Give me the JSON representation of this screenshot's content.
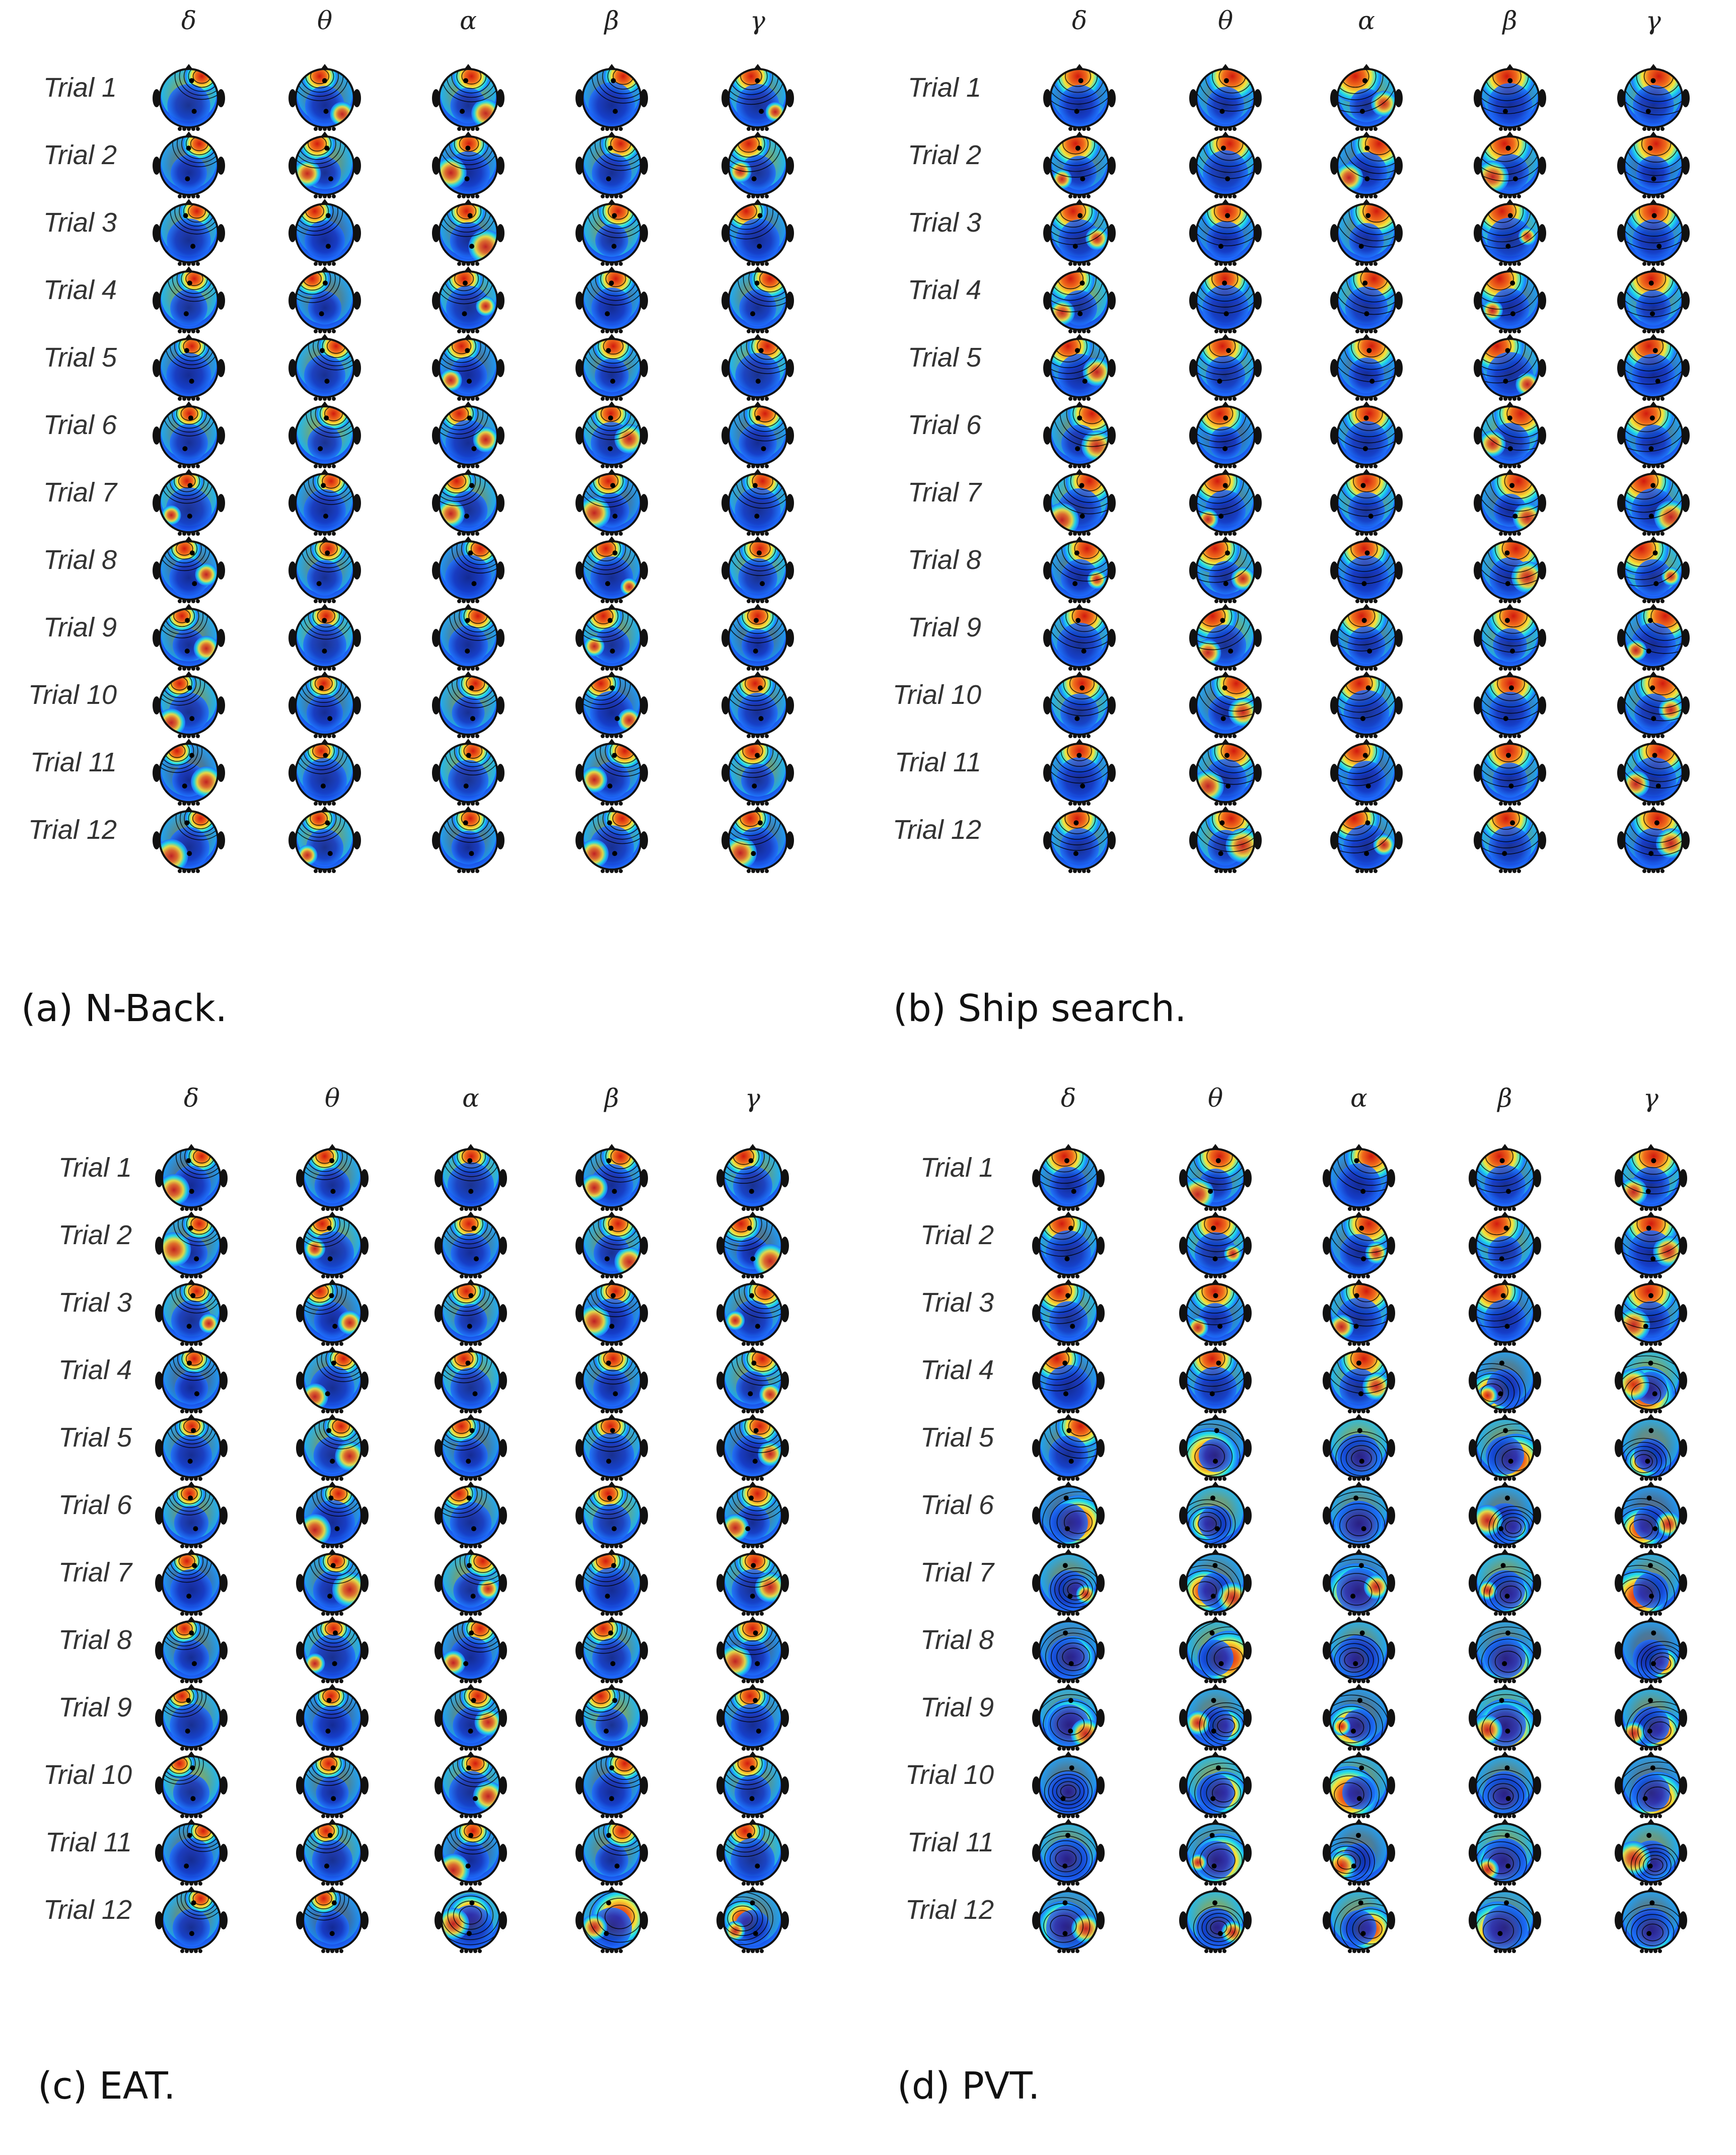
{
  "bands": [
    "δ",
    "θ",
    "α",
    "β",
    "γ"
  ],
  "trials": [
    "Trial 1",
    "Trial 2",
    "Trial 3",
    "Trial 4",
    "Trial 5",
    "Trial 6",
    "Trial 7",
    "Trial 8",
    "Trial 9",
    "Trial 10",
    "Trial 11",
    "Trial 12"
  ],
  "panels": [
    {
      "id": "a",
      "caption": "(a) N-Back."
    },
    {
      "id": "b",
      "caption": "(b) Ship search."
    },
    {
      "id": "c",
      "caption": "(c) EAT."
    },
    {
      "id": "d",
      "caption": "(d) PVT."
    }
  ],
  "colors": {
    "map_low": "#0a1e96",
    "map_mid_low": "#1f6fff",
    "map_mid": "#22e0e8",
    "map_mid_high": "#f6e63a",
    "map_high": "#d11a0e",
    "outline": "#111111"
  }
}
